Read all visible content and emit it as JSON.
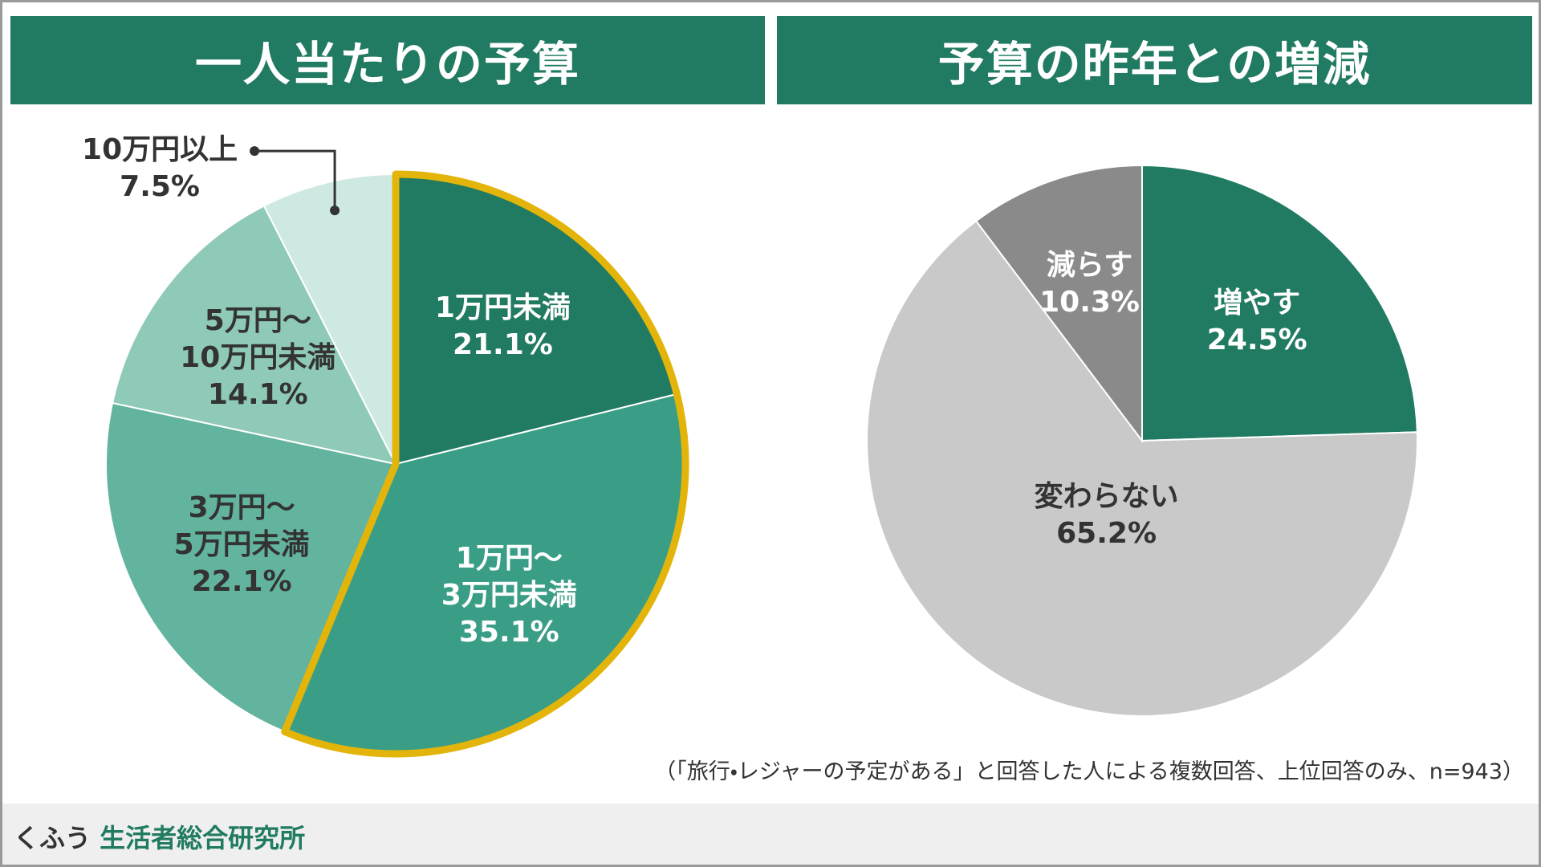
{
  "chart_data": [
    {
      "type": "pie",
      "title": "一人当たりの予算",
      "categories": [
        "1万円未満",
        "1万円～\n3万円未満",
        "3万円～\n5万円未満",
        "5万円～\n10万円未満",
        "10万円以上"
      ],
      "values": [
        21.1,
        35.1,
        22.1,
        14.1,
        7.5
      ],
      "value_labels": [
        "21.1%",
        "35.1%",
        "22.1%",
        "14.1%",
        "7.5%"
      ],
      "colors": [
        "#217a62",
        "#3a9e86",
        "#63b49f",
        "#8fcab8",
        "#cde9e1"
      ],
      "highlighted": [
        0,
        1
      ],
      "highlight_color": "#e3b50b"
    },
    {
      "type": "pie",
      "title": "予算の昨年との増減",
      "categories": [
        "増やす",
        "変わらない",
        "減らす"
      ],
      "values": [
        24.5,
        65.2,
        10.3
      ],
      "value_labels": [
        "24.5%",
        "65.2%",
        "10.3%"
      ],
      "colors": [
        "#217a62",
        "#c9c9c9",
        "#8a8a8a"
      ]
    }
  ],
  "footnote": "（「旅行・レジャーの予定がある」と回答した人による複数回答、上位回答のみ、n=943）",
  "brand": {
    "name": "くふう",
    "org": "生活者総合研究所"
  }
}
